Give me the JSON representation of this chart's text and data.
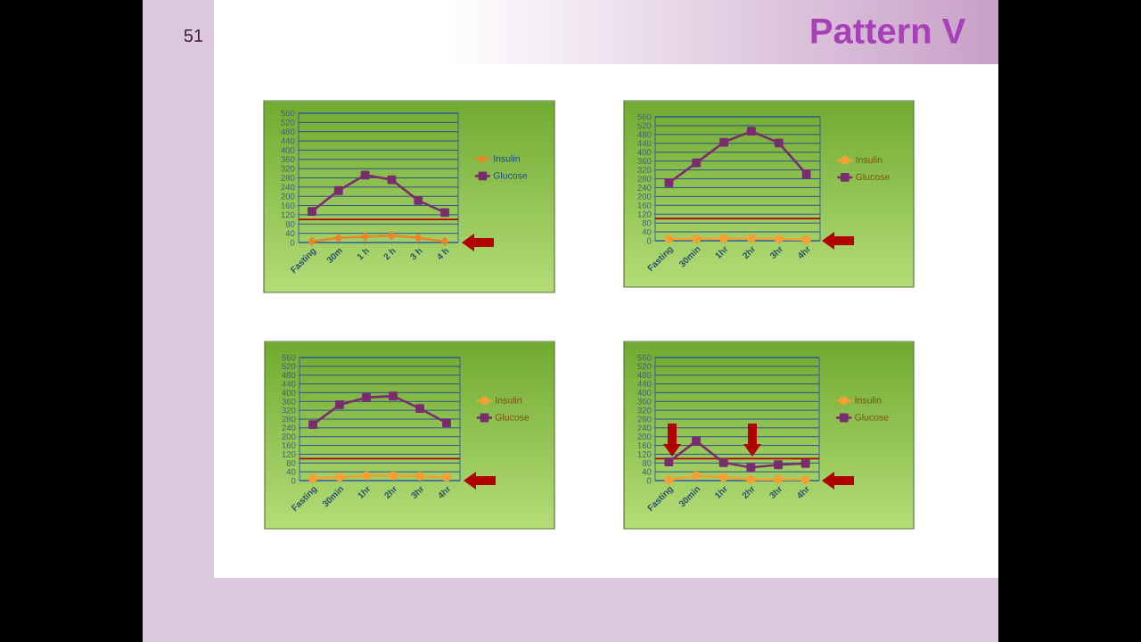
{
  "chart_data": [
    {
      "type": "other",
      "title": "Pattern V",
      "annotations": [
        "51"
      ]
    },
    {
      "type": "line",
      "categories": [
        "Fasting",
        "30m",
        "1 h",
        "2 h",
        "3 h",
        "4 h"
      ],
      "ylim": [
        0,
        560
      ],
      "yticks": [
        0,
        40,
        80,
        120,
        160,
        200,
        240,
        280,
        320,
        360,
        400,
        440,
        480,
        520,
        560
      ],
      "grid": "y",
      "legend": "right",
      "series": [
        {
          "name": "Insulin",
          "color": "#e8862a",
          "marker": "diamond",
          "values": [
            5,
            20,
            25,
            30,
            20,
            5
          ]
        },
        {
          "name": "Glucose",
          "color": "#7b2c6e",
          "marker": "square",
          "values": [
            135,
            225,
            292,
            272,
            182,
            130
          ]
        }
      ],
      "ref_lines": [
        {
          "axis": "y",
          "value": 100,
          "color": "#b00000"
        }
      ]
    },
    {
      "type": "line",
      "categories": [
        "Fasting",
        "30min",
        "1hr",
        "2hr",
        "3hr",
        "4hr"
      ],
      "ylim": [
        0,
        560
      ],
      "yticks": [
        0,
        40,
        80,
        120,
        160,
        200,
        240,
        280,
        320,
        360,
        400,
        440,
        480,
        520,
        560
      ],
      "grid": "y",
      "legend": "right",
      "series": [
        {
          "name": "Insulin",
          "color": "#f5a033",
          "marker": "circle",
          "values": [
            8,
            8,
            10,
            10,
            8,
            5
          ]
        },
        {
          "name": "Glucose",
          "color": "#7b2c6e",
          "marker": "square",
          "values": [
            262,
            352,
            445,
            495,
            442,
            302
          ]
        }
      ],
      "ref_lines": [
        {
          "axis": "y",
          "value": 100,
          "color": "#b00000"
        }
      ]
    },
    {
      "type": "line",
      "categories": [
        "Fasting",
        "30min",
        "1hr",
        "2hr",
        "3hr",
        "4hr"
      ],
      "ylim": [
        0,
        560
      ],
      "yticks": [
        0,
        40,
        80,
        120,
        160,
        200,
        240,
        280,
        320,
        360,
        400,
        440,
        480,
        520,
        560
      ],
      "grid": "y",
      "legend": "right",
      "series": [
        {
          "name": "Insulin",
          "color": "#f5a033",
          "marker": "circle",
          "values": [
            10,
            15,
            22,
            22,
            20,
            15
          ]
        },
        {
          "name": "Glucose",
          "color": "#7b2c6e",
          "marker": "square",
          "values": [
            255,
            345,
            378,
            385,
            328,
            262
          ]
        }
      ],
      "ref_lines": [
        {
          "axis": "y",
          "value": 100,
          "color": "#b00000"
        }
      ]
    },
    {
      "type": "line",
      "categories": [
        "Fasting",
        "30min",
        "1hr",
        "2hr",
        "3hr",
        "4hr"
      ],
      "ylim": [
        0,
        560
      ],
      "yticks": [
        0,
        40,
        80,
        120,
        160,
        200,
        240,
        280,
        320,
        360,
        400,
        440,
        480,
        520,
        560
      ],
      "grid": "y",
      "legend": "right",
      "series": [
        {
          "name": "Insulin",
          "color": "#f5a033",
          "marker": "circle",
          "values": [
            3,
            22,
            15,
            5,
            5,
            3
          ]
        },
        {
          "name": "Glucose",
          "color": "#7b2c6e",
          "marker": "square",
          "values": [
            85,
            180,
            82,
            60,
            72,
            78
          ]
        }
      ],
      "ref_lines": [
        {
          "axis": "y",
          "value": 100,
          "color": "#b00000"
        }
      ]
    }
  ]
}
